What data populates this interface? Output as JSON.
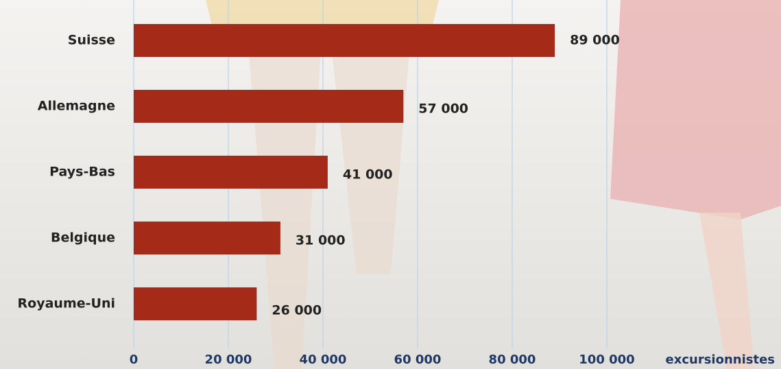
{
  "chart_data": {
    "type": "bar",
    "orientation": "horizontal",
    "categories": [
      "Suisse",
      "Allemagne",
      "Pays-Bas",
      "Belgique",
      "Royaume-Uni"
    ],
    "values": [
      89000,
      57000,
      41000,
      31000,
      26000
    ],
    "value_labels": [
      "89 000",
      "57 000",
      "41 000",
      "31 000",
      "26 000"
    ],
    "color": "#a52a17",
    "x_label": "excursionnistes",
    "xlim": [
      0,
      100000
    ],
    "xticks": [
      0,
      {
        "value": 20000,
        "label": "20 000"
      },
      {
        "value": 40000,
        "label": "40 000"
      },
      {
        "value": 60000,
        "label": "60 000"
      },
      {
        "value": 80000,
        "label": "80 000"
      },
      {
        "value": 100000,
        "label": "100 000"
      }
    ],
    "grid": true
  }
}
